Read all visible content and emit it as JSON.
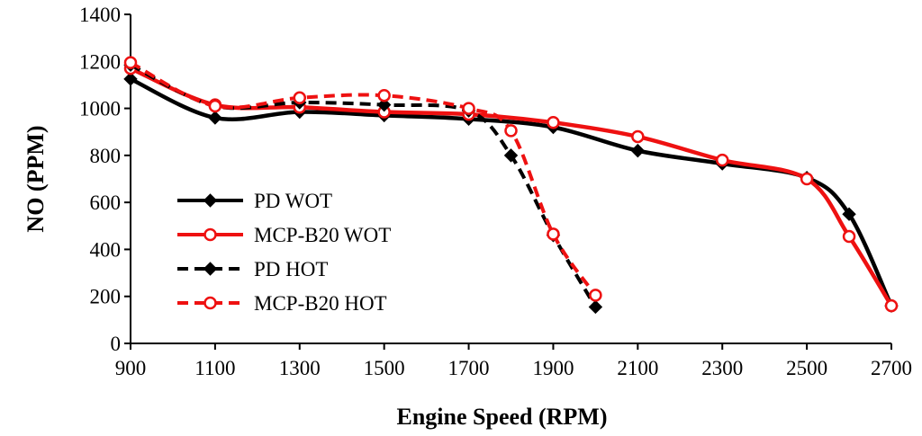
{
  "chart_data": {
    "type": "line",
    "title": "",
    "xlabel": "Engine Speed (RPM)",
    "ylabel": "NO (PPM)",
    "xlim": [
      900,
      2700
    ],
    "ylim": [
      0,
      1400
    ],
    "xticks": [
      "900",
      "1100",
      "1300",
      "1500",
      "1700",
      "1900",
      "2100",
      "2300",
      "2500",
      "2700"
    ],
    "yticks": [
      "0",
      "200",
      "400",
      "600",
      "800",
      "1000",
      "1200",
      "1400"
    ],
    "grid": false,
    "legend_position": "left",
    "series": [
      {
        "name": "PD WOT",
        "color": "#000000",
        "style": "solid",
        "marker": "diamond",
        "x": [
          900,
          1100,
          1300,
          1500,
          1700,
          1900,
          2100,
          2300,
          2500,
          2600,
          2700
        ],
        "y": [
          1125,
          960,
          985,
          970,
          955,
          920,
          820,
          765,
          705,
          550,
          160
        ]
      },
      {
        "name": "MCP-B20 WOT",
        "color": "#ee1111",
        "style": "solid",
        "marker": "circle",
        "x": [
          900,
          1100,
          1300,
          1500,
          1700,
          1900,
          2100,
          2300,
          2500,
          2600,
          2700
        ],
        "y": [
          1170,
          1015,
          1005,
          985,
          975,
          940,
          880,
          780,
          700,
          455,
          160
        ]
      },
      {
        "name": "PD HOT",
        "color": "#000000",
        "style": "dashed",
        "marker": "diamond",
        "x": [
          900,
          1100,
          1300,
          1500,
          1700,
          1800,
          1900,
          2000
        ],
        "y": [
          1185,
          1010,
          1025,
          1015,
          990,
          800,
          460,
          155
        ]
      },
      {
        "name": "MCP-B20 HOT",
        "color": "#ee1111",
        "style": "dashed",
        "marker": "circle",
        "x": [
          900,
          1100,
          1300,
          1500,
          1700,
          1800,
          1900,
          2000
        ],
        "y": [
          1195,
          1010,
          1045,
          1055,
          1000,
          905,
          465,
          205
        ]
      }
    ]
  }
}
